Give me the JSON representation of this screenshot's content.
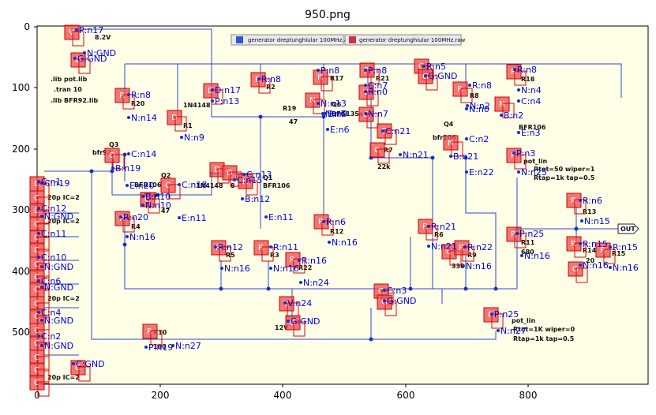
{
  "title": "950.png",
  "axes": {
    "x_ticks": [
      "0",
      "200",
      "400",
      "600",
      "800"
    ],
    "y_ticks": [
      "0",
      "100",
      "200",
      "300",
      "400",
      "500"
    ]
  },
  "toolbar": {
    "button_asc": "generator dreptunghiular 100MHz.asc",
    "button_raw": "generator dreptunghiular 100MHz.raw"
  },
  "schematic_text": {
    "vsrc_value": "8.2V",
    "lib1": ".lib pot.lib",
    "tran": ".tran 10",
    "lib2": ".lib BFR92.lib",
    "r20": "R20",
    "diode": "1N4148",
    "r1": "R1",
    "r2": "R2",
    "r17": "R17",
    "r21": "R21",
    "r19": "R19",
    "r19v": "47",
    "q6": "Q6",
    "q6m": "BFG135a",
    "r7": "R7",
    "r7v": "22k",
    "q4": "Q4",
    "q4m": "bfr106",
    "r8": "R8",
    "r18": "R18",
    "q5": "BFR106",
    "q3": "Q3",
    "q3m": "bfr92",
    "q2": "Q2",
    "q2m": "BFR106",
    "r16": "R16",
    "r16v": "47",
    "r4": "R4",
    "q1": "Q1",
    "q1m": "BFR106",
    "diode2": "1N4148",
    "q1v": "8",
    "r12": "R12",
    "r6": "R6",
    "r9": "R9",
    "r9v": "330",
    "r5": "R5",
    "r3": "R3",
    "r22": "R22",
    "r11": "R11",
    "r11v": "680",
    "r13": "R13",
    "r14": "R14",
    "r14v": "20",
    "r15": "R15",
    "r10": "R10",
    "r10v": "100",
    "vsrc2": "12V",
    "pot1": "pot_lin",
    "pot1a": "Rtot=50 wiper=1",
    "pot1b": "Rtap=1k tap=0.5",
    "pot2": "pot_lin",
    "pot2a": "Rtot=1K wiper=0",
    "pot2b": "Rtap=1k tap=0.5",
    "cap_ic": "20p IC=2",
    "out": "OUT"
  },
  "node_labels": [
    "P:n17",
    "N:GND",
    "G:GND",
    "R:n8",
    "N:n14",
    "D:n17",
    "P:n13",
    "R:n8",
    "N:n9",
    "P:n8",
    "N:n7",
    "N:n13",
    "P:n8",
    "R:n0",
    "N:n7",
    "C:n7",
    "B:n9",
    "E:n6",
    "R:n8",
    "N:n0",
    "R:n5",
    "G:GND",
    "R:n8",
    "N:n4",
    "C:n4",
    "B:n2",
    "E:n3",
    "C:n14",
    "B:n19",
    "E:n20",
    "N:n10",
    "B:n10",
    "C:n18",
    "C:n15",
    "B:n12",
    "E:n11",
    "R:n20",
    "N:n16",
    "E:n11",
    "C:n19",
    "R:n12",
    "N:n16",
    "R:n11",
    "N:n16",
    "R:n16",
    "N:n24",
    "R:n6",
    "N:n16",
    "R:n21",
    "N:n21",
    "R:n22",
    "N:n16",
    "P:n25",
    "N:n16",
    "R:n6",
    "N:n15",
    "R:n15",
    "N:n16",
    "R:n15",
    "N:n16",
    "C:n3",
    "G:GND",
    "V:n24",
    "G:GND",
    "P:n25",
    "N:n27",
    "P:n19",
    "N:n27",
    "C:GND",
    "C:n2",
    "B:n21",
    "E:n22",
    "P:n3",
    "N:n25",
    "C:n21",
    "N:n21",
    "N:n2",
    "C:n13",
    "C:n1",
    "C:n12",
    "N:GND",
    "C:n11",
    "C:n10",
    "N:GND",
    "C:n6",
    "N:GND",
    "C:n4",
    "N:GND",
    "C:n2",
    "N:GND"
  ]
}
